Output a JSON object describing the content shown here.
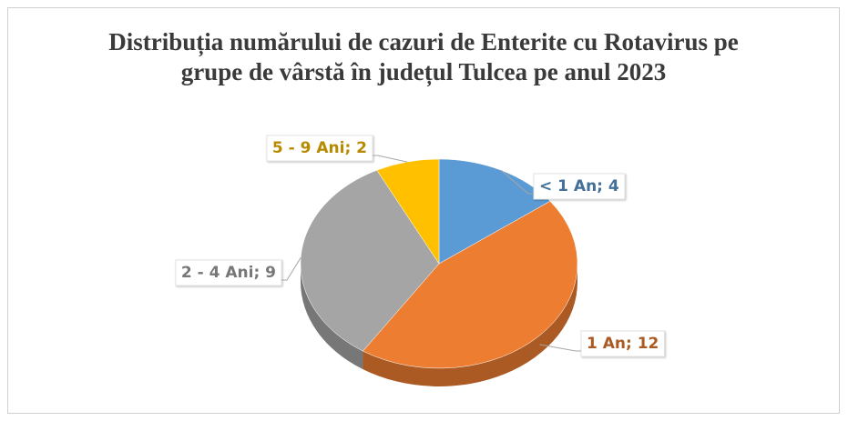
{
  "chart_data": {
    "type": "pie",
    "title": "Distribuția numărului de cazuri de Enterite cu Rotavirus pe grupe de vârstă în județul Tulcea pe anul 2023",
    "categories": [
      "< 1 An",
      "1 An",
      "2 - 4 Ani",
      "5 - 9 Ani"
    ],
    "values": [
      4,
      12,
      9,
      2
    ],
    "value_labels": [
      "< 1 An; 4",
      "1 An; 12",
      "2 - 4 Ani; 9",
      "5 - 9 Ani; 2"
    ],
    "colors": [
      "#5b9bd5",
      "#ed7d31",
      "#a5a5a5",
      "#ffc000"
    ],
    "three_d": true
  }
}
